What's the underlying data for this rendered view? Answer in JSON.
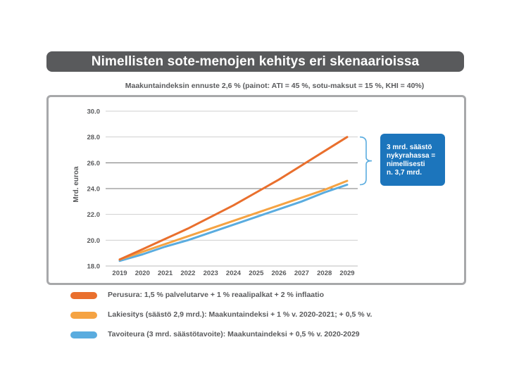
{
  "title": "Nimellisten sote-menojen kehitys eri skenaarioissa",
  "subtitle": "Maakuntaindeksin ennuste 2,6 % (painot: ATI = 45 %, sotu-maksut = 15 %, KHI = 40%)",
  "callout": {
    "lines": [
      "3 mrd. säästö",
      "nykyrahassa =",
      "nimellisesti",
      "n. 3,7 mrd."
    ]
  },
  "colors": {
    "orange": "#e96f2d",
    "light_orange": "#f5a343",
    "blue": "#5aacdf",
    "callout": "#1c75bc",
    "title_bg": "#595a5c"
  },
  "legend": [
    {
      "label": "Perusura: 1,5 % palvelutarve + 1 % reaalipalkat + 2 % inflaatio",
      "color": "#e96f2d"
    },
    {
      "label": "Lakiesitys (säästö 2,9 mrd.): Maakuntaindeksi + 1 % v. 2020-2021; + 0,5 % v.",
      "color": "#f5a343"
    },
    {
      "label": "Tavoiteura (3 mrd. säästötavoite): Maakuntaindeksi + 0,5 % v. 2020-2029",
      "color": "#5aacdf"
    }
  ],
  "chart_data": {
    "type": "line",
    "title": "Nimellisten sote-menojen kehitys eri skenaarioissa",
    "subtitle": "Maakuntaindeksin ennuste 2,6 % (painot: ATI = 45 %, sotu-maksut = 15 %, KHI = 40%)",
    "ylabel": "Mrd. euroa",
    "xlabel": "",
    "ylim": [
      18.0,
      30.0
    ],
    "yticks": [
      "30.0",
      "28.0",
      "26.0",
      "24.0",
      "22.0",
      "20.0",
      "18.0"
    ],
    "x": [
      "2019",
      "2020",
      "2021",
      "2022",
      "2023",
      "2024",
      "2025",
      "2026",
      "2027",
      "2028",
      "2029"
    ],
    "series": [
      {
        "name": "Perusura",
        "color": "#e96f2d",
        "values": [
          18.5,
          19.3,
          20.1,
          20.9,
          21.8,
          22.7,
          23.7,
          24.7,
          25.8,
          26.9,
          28.0
        ]
      },
      {
        "name": "Lakiesitys",
        "color": "#f5a343",
        "values": [
          18.5,
          19.1,
          19.7,
          20.3,
          20.9,
          21.5,
          22.1,
          22.7,
          23.3,
          23.9,
          24.6
        ]
      },
      {
        "name": "Tavoiteura",
        "color": "#5aacdf",
        "values": [
          18.4,
          18.9,
          19.5,
          20.0,
          20.6,
          21.2,
          21.8,
          22.4,
          23.0,
          23.7,
          24.3
        ]
      }
    ],
    "grid": true,
    "legend_position": "bottom"
  }
}
